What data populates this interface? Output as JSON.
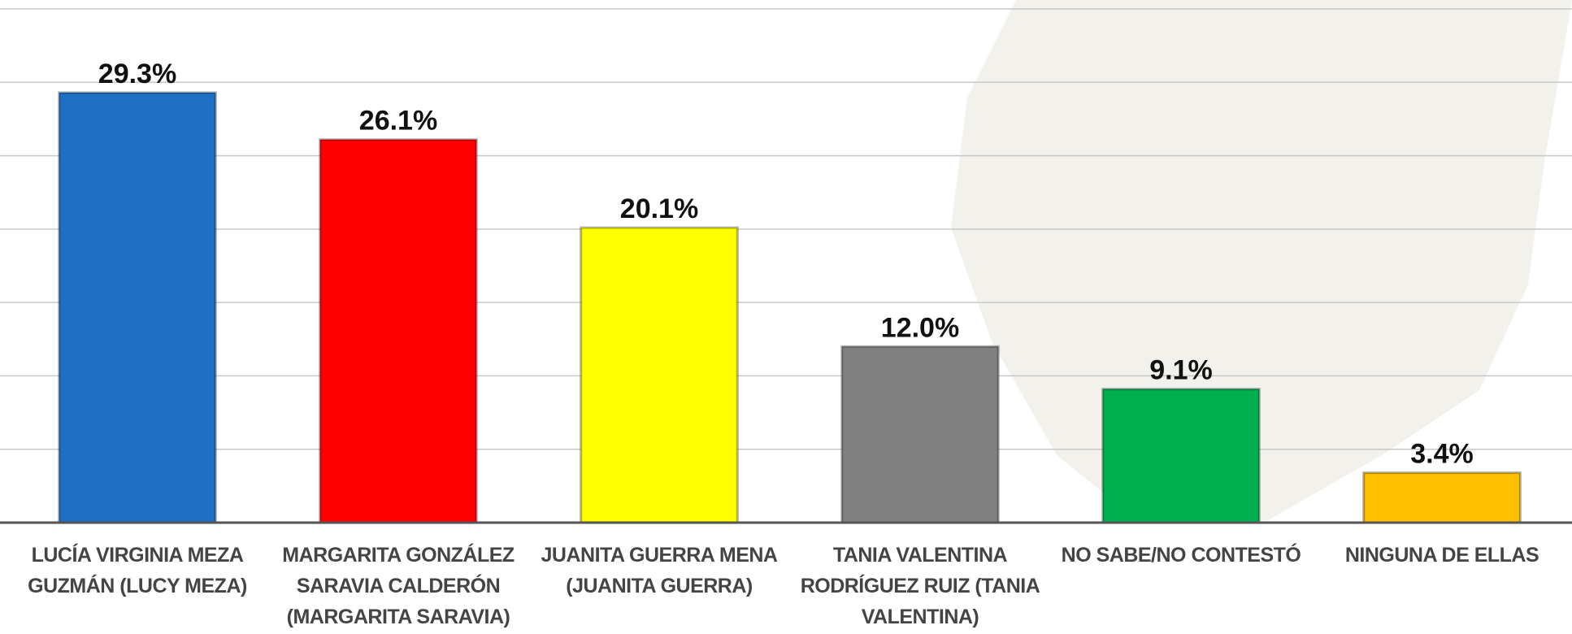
{
  "chart_data": {
    "type": "bar",
    "categories": [
      "LUCÍA VIRGINIA MEZA GUZMÁN (LUCY MEZA)",
      "MARGARITA GONZÁLEZ SARAVIA CALDERÓN (MARGARITA SARAVIA)",
      "JUANITA GUERRA MENA (JUANITA GUERRA)",
      "TANIA VALENTINA RODRÍGUEZ RUIZ (TANIA VALENTINA)",
      "NO SABE/NO CONTESTÓ",
      "NINGUNA DE ELLAS"
    ],
    "values": [
      29.3,
      26.1,
      20.1,
      12.0,
      9.1,
      3.4
    ],
    "value_labels": [
      "29.3%",
      "26.1%",
      "20.1%",
      "12.0%",
      "9.1%",
      "3.4%"
    ],
    "colors": [
      "#1f6fc5",
      "#ff0000",
      "#ffff00",
      "#808080",
      "#00b050",
      "#ffc000"
    ],
    "ylim": [
      0,
      35
    ],
    "yticks": [
      0,
      5,
      10,
      15,
      20,
      25,
      30,
      35
    ],
    "grid": true
  }
}
